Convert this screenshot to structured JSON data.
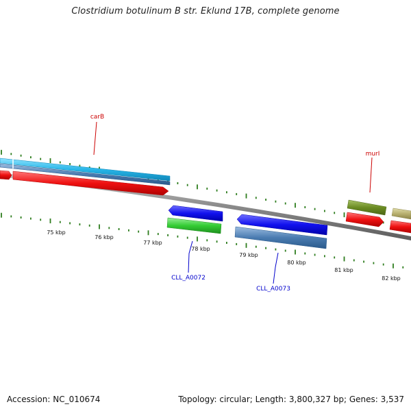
{
  "title": "Clostridium botulinum B str. Eklund 17B, complete genome",
  "footer": {
    "accession": "Accession: NC_010674",
    "summary": "Topology: circular; Length: 3,800,327 bp; Genes: 3,537"
  },
  "ticks": [
    "75 kbp",
    "76 kbp",
    "77 kbp",
    "78 kbp",
    "79 kbp",
    "80 kbp",
    "81 kbp",
    "82 kbp"
  ],
  "gene_labels": {
    "carB": "carB",
    "murI": "murI",
    "cll_a0072": "CLL_A0072",
    "cll_a0073": "CLL_A0073"
  },
  "colors": {
    "backbone": "#8a8a8a",
    "tick": "#2e7d1e",
    "red_label": "#cc0000",
    "blue_label": "#0000cc",
    "cyan": "#29b6e8",
    "steel": "#4a7bb0",
    "red": "#ee1111",
    "blue": "#1111ee",
    "green": "#33cc33",
    "olive": "#6b8c23",
    "khaki": "#b8b070"
  }
}
